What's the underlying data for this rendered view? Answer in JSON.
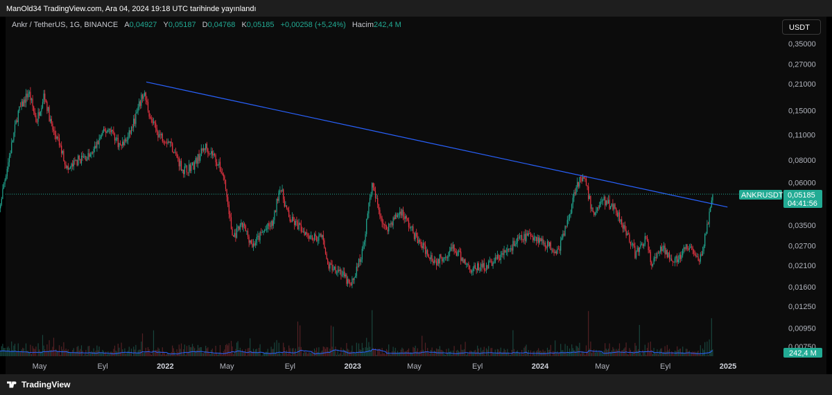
{
  "header": {
    "published_text": "ManOld34 TradingView.com, Ara 04, 2024 19:18 UTC tarihinde yayınlandı"
  },
  "legend": {
    "symbol": "Ankr / TetherUS, 1G, BINANCE",
    "open_label": "A",
    "open": "0,04927",
    "high_label": "Y",
    "high": "0,05187",
    "low_label": "D",
    "low": "0,04768",
    "close_label": "K",
    "close": "0,05185",
    "change": "+0,00258 (+5,24%)",
    "volume_label": "Hacim",
    "volume": "242,4 M"
  },
  "currency_button": "USDT",
  "footer": {
    "brand": "TradingView"
  },
  "colors": {
    "up": "#22ab94",
    "down": "#f23645",
    "trendline": "#2962ff",
    "volume_ma": "#2962ff",
    "price_tag": "#22ab94"
  },
  "chart_data": {
    "type": "candlestick",
    "price_scale": "log",
    "y_ticks": [
      "0,35000",
      "0,27000",
      "0,21000",
      "0,15000",
      "0,11000",
      "0,08000",
      "0,06000",
      "0,03500",
      "0,02700",
      "0,02100",
      "0,01600",
      "0,01250",
      "0,00950",
      "0,00750"
    ],
    "x_ticks": [
      {
        "label": "May",
        "year": false
      },
      {
        "label": "Eyl",
        "year": false
      },
      {
        "label": "2022",
        "year": true
      },
      {
        "label": "May",
        "year": false
      },
      {
        "label": "Eyl",
        "year": false
      },
      {
        "label": "2023",
        "year": true
      },
      {
        "label": "May",
        "year": false
      },
      {
        "label": "Eyl",
        "year": false
      },
      {
        "label": "2024",
        "year": true
      },
      {
        "label": "May",
        "year": false
      },
      {
        "label": "Eyl",
        "year": false
      },
      {
        "label": "2025",
        "year": true
      }
    ],
    "price_path": [
      [
        "2021-02-01",
        0.028
      ],
      [
        "2021-02-20",
        0.058
      ],
      [
        "2021-03-20",
        0.145
      ],
      [
        "2021-04-10",
        0.19
      ],
      [
        "2021-04-25",
        0.13
      ],
      [
        "2021-05-10",
        0.185
      ],
      [
        "2021-05-25",
        0.12
      ],
      [
        "2021-06-10",
        0.095
      ],
      [
        "2021-06-25",
        0.07
      ],
      [
        "2021-07-15",
        0.08
      ],
      [
        "2021-08-10",
        0.085
      ],
      [
        "2021-08-30",
        0.11
      ],
      [
        "2021-09-15",
        0.12
      ],
      [
        "2021-10-05",
        0.095
      ],
      [
        "2021-10-20",
        0.105
      ],
      [
        "2021-11-05",
        0.14
      ],
      [
        "2021-11-20",
        0.19
      ],
      [
        "2021-12-05",
        0.13
      ],
      [
        "2021-12-20",
        0.11
      ],
      [
        "2022-01-10",
        0.1
      ],
      [
        "2022-02-05",
        0.07
      ],
      [
        "2022-02-25",
        0.075
      ],
      [
        "2022-03-20",
        0.095
      ],
      [
        "2022-04-05",
        0.085
      ],
      [
        "2022-04-25",
        0.065
      ],
      [
        "2022-05-12",
        0.03
      ],
      [
        "2022-06-01",
        0.035
      ],
      [
        "2022-06-20",
        0.027
      ],
      [
        "2022-07-10",
        0.032
      ],
      [
        "2022-07-30",
        0.036
      ],
      [
        "2022-08-12",
        0.058
      ],
      [
        "2022-08-30",
        0.038
      ],
      [
        "2022-09-20",
        0.034
      ],
      [
        "2022-10-15",
        0.03
      ],
      [
        "2022-11-05",
        0.03
      ],
      [
        "2022-11-12",
        0.021
      ],
      [
        "2022-12-05",
        0.02
      ],
      [
        "2022-12-28",
        0.016
      ],
      [
        "2023-01-20",
        0.025
      ],
      [
        "2023-02-07",
        0.058
      ],
      [
        "2023-03-05",
        0.033
      ],
      [
        "2023-04-05",
        0.042
      ],
      [
        "2023-05-10",
        0.028
      ],
      [
        "2023-06-12",
        0.022
      ],
      [
        "2023-07-15",
        0.026
      ],
      [
        "2023-08-20",
        0.02
      ],
      [
        "2023-09-20",
        0.021
      ],
      [
        "2023-10-20",
        0.024
      ],
      [
        "2023-11-20",
        0.029
      ],
      [
        "2023-12-15",
        0.031
      ],
      [
        "2024-01-10",
        0.028
      ],
      [
        "2024-02-05",
        0.025
      ],
      [
        "2024-02-25",
        0.038
      ],
      [
        "2024-03-12",
        0.06
      ],
      [
        "2024-03-28",
        0.062
      ],
      [
        "2024-04-13",
        0.04
      ],
      [
        "2024-05-01",
        0.048
      ],
      [
        "2024-05-25",
        0.044
      ],
      [
        "2024-06-20",
        0.031
      ],
      [
        "2024-07-05",
        0.024
      ],
      [
        "2024-07-25",
        0.03
      ],
      [
        "2024-08-05",
        0.021
      ],
      [
        "2024-08-25",
        0.026
      ],
      [
        "2024-09-25",
        0.022
      ],
      [
        "2024-10-10",
        0.026
      ],
      [
        "2024-10-25",
        0.026
      ],
      [
        "2024-11-05",
        0.021
      ],
      [
        "2024-11-20",
        0.033
      ],
      [
        "2024-12-04",
        0.05185
      ]
    ],
    "trendline": {
      "from": [
        "2021-11-25",
        0.215
      ],
      "to": [
        "2024-12-31",
        0.044
      ]
    },
    "last_price": {
      "symbol": "ANKRUSDT",
      "value": "0,05185",
      "countdown": "04:41:56"
    },
    "volume_last": "242,4 M"
  }
}
